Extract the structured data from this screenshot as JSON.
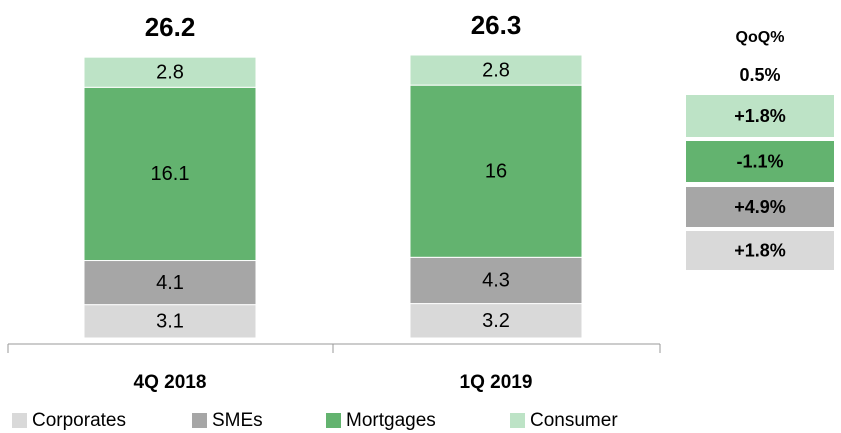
{
  "chart_data": {
    "type": "stacked_bar",
    "categories": [
      "4Q 2018",
      "1Q 2019"
    ],
    "totals": [
      26.2,
      26.3
    ],
    "series": [
      {
        "name": "Corporates",
        "color": "#d9d9d9",
        "values": [
          3.1,
          3.2
        ]
      },
      {
        "name": "SMEs",
        "color": "#a6a6a6",
        "values": [
          4.1,
          4.3
        ]
      },
      {
        "name": "Mortgages",
        "color": "#63b36f",
        "values": [
          16.1,
          16.0
        ]
      },
      {
        "name": "Consumer",
        "color": "#bde3c6",
        "values": [
          2.8,
          2.8
        ]
      }
    ],
    "qoq": {
      "title": "QoQ%",
      "total": 0.5,
      "total_label": "0.5%",
      "values": [
        1.8,
        4.9,
        -1.1,
        1.8
      ],
      "value_labels": [
        "+1.8%",
        "+4.9%",
        "-1.1%",
        "+1.8%"
      ]
    }
  }
}
